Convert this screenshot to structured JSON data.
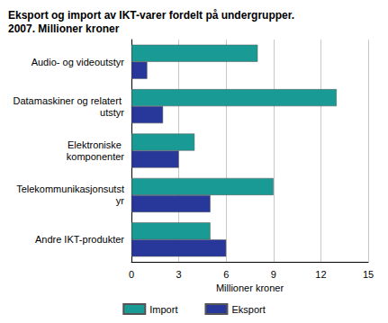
{
  "chart_data": {
    "type": "bar",
    "title": "Eksport og import av IKT-varer fordelt på undergrupper. 2007. Millioner kroner",
    "x_label": "Millioner kroner",
    "orientation": "horizontal",
    "categories": [
      "Audio- og videoutstyr",
      "Datamaskiner og relatert utstyr",
      "Elektroniske komponenter",
      "Telekommunikasjonsutstyr",
      "Andre IKT-produkter"
    ],
    "series": [
      {
        "name": "Import",
        "color": "#1a9a94",
        "values": [
          8,
          13,
          4,
          9,
          5
        ]
      },
      {
        "name": "Eksport",
        "color": "#28389a",
        "values": [
          1,
          2,
          3,
          5,
          6
        ]
      }
    ],
    "xlim": [
      0,
      15
    ],
    "xticks": [
      0,
      3,
      6,
      9,
      12,
      15
    ],
    "grid": true,
    "legend": "bottom"
  }
}
